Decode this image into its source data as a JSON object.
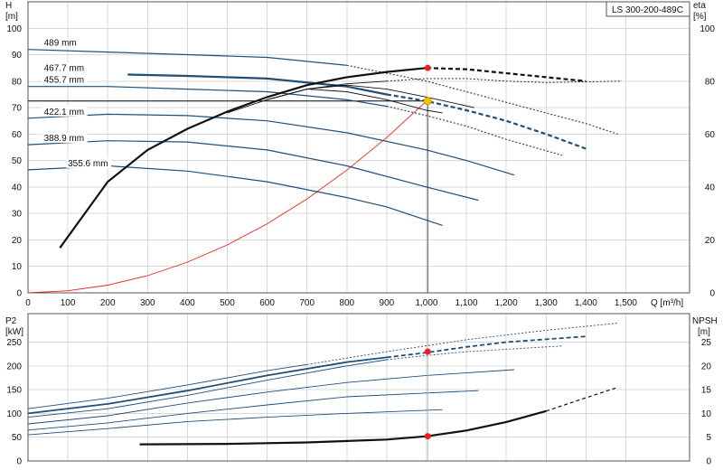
{
  "model_label": "LS 300-200-489C",
  "colors": {
    "impeller": "#1f4e79",
    "system": "#e8231b",
    "op_point_head": "#f2c500",
    "op_point": "#e8231b",
    "efficiency": "#111111",
    "npsh": "#111111",
    "grid": "#d9d9d9"
  },
  "chart_data": [
    {
      "type": "line",
      "panel": "head-efficiency",
      "title": "",
      "xlabel": "Q [m³/h]",
      "ylabel": "H\n[m]",
      "y2label": "eta\n[%]",
      "ylabel_parts": [
        "H",
        "[m]"
      ],
      "y2label_parts": [
        "eta",
        "[%]"
      ],
      "xlim": [
        0,
        1660
      ],
      "ylim": [
        0,
        110
      ],
      "y2lim": [
        0,
        110
      ],
      "xticks": [
        0,
        100,
        200,
        300,
        400,
        500,
        600,
        700,
        800,
        900,
        1000,
        1100,
        1200,
        1300,
        1400,
        1500
      ],
      "xtick_labels": [
        "0",
        "100",
        "200",
        "300",
        "400",
        "500",
        "600",
        "700",
        "800",
        "900",
        "1,000",
        "1,100",
        "1,200",
        "1,300",
        "1,400",
        "1,500"
      ],
      "yticks": [
        0,
        10,
        20,
        30,
        40,
        50,
        60,
        70,
        80,
        90,
        100
      ],
      "y2ticks": [
        0,
        20,
        40,
        60,
        80,
        100
      ],
      "grid": true,
      "series": [
        {
          "name": "489 mm",
          "label_x": 40,
          "solid": [
            [
              0,
              92
            ],
            [
              200,
              91
            ],
            [
              400,
              90
            ],
            [
              600,
              89
            ],
            [
              800,
              86
            ]
          ],
          "dashed": [
            [
              800,
              86
            ],
            [
              1000,
              80
            ],
            [
              1200,
              72
            ],
            [
              1400,
              64
            ],
            [
              1480,
              60
            ]
          ]
        },
        {
          "name": "467.7 mm",
          "label_x": 40,
          "solid": [
            [
              250,
              82.5
            ],
            [
              400,
              82
            ],
            [
              600,
              81
            ],
            [
              800,
              78
            ],
            [
              900,
              75
            ]
          ],
          "dashed": [
            [
              900,
              75
            ],
            [
              1000,
              72.5
            ],
            [
              1100,
              69
            ],
            [
              1200,
              65
            ],
            [
              1300,
              60
            ],
            [
              1400,
              54.5
            ]
          ]
        },
        {
          "name": "455.7 mm",
          "label_x": 40,
          "solid": [
            [
              0,
              78
            ],
            [
              200,
              78
            ],
            [
              400,
              77
            ],
            [
              600,
              76
            ],
            [
              800,
              73
            ],
            [
              900,
              70.5
            ]
          ],
          "dashed": [
            [
              900,
              70.5
            ],
            [
              1000,
              67
            ],
            [
              1100,
              63
            ],
            [
              1200,
              58
            ],
            [
              1340,
              52
            ]
          ]
        },
        {
          "name": "422.1 mm",
          "label_x": 40,
          "solid": [
            [
              0,
              66
            ],
            [
              200,
              67.5
            ],
            [
              400,
              67
            ],
            [
              600,
              65
            ],
            [
              800,
              60.5
            ],
            [
              1000,
              54
            ],
            [
              1100,
              50
            ],
            [
              1220,
              44.5
            ]
          ],
          "dashed": []
        },
        {
          "name": "388.9 mm",
          "label_x": 40,
          "solid": [
            [
              0,
              56
            ],
            [
              200,
              57.5
            ],
            [
              400,
              57
            ],
            [
              600,
              54
            ],
            [
              800,
              48
            ],
            [
              1000,
              40
            ],
            [
              1130,
              35
            ]
          ],
          "dashed": []
        },
        {
          "name": "355.6 mm",
          "label_x": 100,
          "solid": [
            [
              0,
              46.5
            ],
            [
              200,
              48
            ],
            [
              400,
              46
            ],
            [
              600,
              42
            ],
            [
              800,
              36
            ],
            [
              900,
              32.5
            ],
            [
              1040,
              25.5
            ]
          ],
          "dashed": []
        }
      ],
      "system_curve": [
        [
          0,
          0
        ],
        [
          100,
          0.8
        ],
        [
          200,
          2.9
        ],
        [
          300,
          6.5
        ],
        [
          400,
          11.6
        ],
        [
          500,
          18.1
        ],
        [
          600,
          26.1
        ],
        [
          700,
          35.5
        ],
        [
          800,
          46.4
        ],
        [
          900,
          58.7
        ],
        [
          1000,
          72.5
        ]
      ],
      "efficiency_curves": [
        {
          "solid": [
            [
              80,
              17
            ],
            [
              200,
              42
            ],
            [
              300,
              54
            ],
            [
              400,
              62
            ],
            [
              500,
              68.5
            ],
            [
              600,
              74
            ],
            [
              700,
              78.5
            ],
            [
              800,
              81.5
            ],
            [
              900,
              83.5
            ],
            [
              1000,
              85
            ]
          ],
          "dashed": [
            [
              1000,
              85
            ],
            [
              1100,
              84.5
            ],
            [
              1200,
              83
            ],
            [
              1300,
              81.5
            ],
            [
              1400,
              80
            ]
          ]
        },
        {
          "solid": [
            [
              500,
              68
            ],
            [
              600,
              73
            ],
            [
              700,
              77
            ],
            [
              800,
              79
            ],
            [
              900,
              80
            ]
          ],
          "dashed": [
            [
              900,
              80
            ],
            [
              1000,
              81
            ],
            [
              1100,
              81
            ],
            [
              1200,
              80
            ],
            [
              1300,
              79.5
            ],
            [
              1490,
              80
            ]
          ]
        },
        {
          "solid": [
            [
              600,
              73
            ],
            [
              700,
              77
            ],
            [
              800,
              78.5
            ],
            [
              900,
              77
            ],
            [
              1000,
              74
            ],
            [
              1120,
              70
            ]
          ],
          "dashed": []
        },
        {
          "solid": [
            [
              600,
              73
            ],
            [
              700,
              77
            ],
            [
              800,
              76
            ],
            [
              900,
              73
            ],
            [
              1000,
              69
            ],
            [
              1040,
              68
            ]
          ],
          "dashed": []
        }
      ],
      "operating_point": {
        "q": 1003,
        "h": 72.5,
        "eta": 85
      },
      "operating_line": {
        "h": 72.5,
        "q": 1003
      }
    },
    {
      "type": "line",
      "panel": "power-npsh",
      "title": "",
      "ylabel": "P2\n[kW]",
      "y2label": "NPSH\n[m]",
      "ylabel_parts": [
        "P2",
        "[kW]"
      ],
      "y2label_parts": [
        "NPSH",
        "[m]"
      ],
      "xlim": [
        0,
        1660
      ],
      "ylim": [
        0,
        310
      ],
      "y2lim": [
        0,
        31
      ],
      "yticks": [
        0,
        50,
        100,
        150,
        200,
        250
      ],
      "y2ticks": [
        0,
        5,
        10,
        15,
        20,
        25
      ],
      "grid": true,
      "power_curves": [
        {
          "name": "489 mm",
          "solid": [
            [
              0,
              110
            ],
            [
              200,
              132
            ],
            [
              400,
              160
            ],
            [
              600,
              190
            ],
            [
              700,
              203
            ]
          ],
          "dashed": [
            [
              700,
              203
            ],
            [
              900,
              230
            ],
            [
              1100,
              255
            ],
            [
              1300,
              275
            ],
            [
              1480,
              290
            ]
          ]
        },
        {
          "name": "467.7 mm",
          "solid": [
            [
              0,
              100
            ],
            [
              200,
              120
            ],
            [
              400,
              148
            ],
            [
              600,
              180
            ],
            [
              800,
              208
            ],
            [
              900,
              218
            ]
          ],
          "dashed": [
            [
              900,
              218
            ],
            [
              1000,
              228
            ],
            [
              1100,
              240
            ],
            [
              1200,
              250
            ],
            [
              1400,
              262
            ]
          ]
        },
        {
          "name": "455.7 mm",
          "solid": [
            [
              0,
              92
            ],
            [
              200,
              110
            ],
            [
              400,
              138
            ],
            [
              600,
              170
            ],
            [
              800,
              200
            ],
            [
              900,
              213
            ]
          ],
          "dashed": [
            [
              900,
              213
            ],
            [
              1000,
              222
            ],
            [
              1100,
              230
            ],
            [
              1200,
              235
            ],
            [
              1340,
              242
            ]
          ]
        },
        {
          "name": "422.1 mm",
          "solid": [
            [
              0,
              78
            ],
            [
              200,
              95
            ],
            [
              400,
              122
            ],
            [
              600,
              145
            ],
            [
              800,
              165
            ],
            [
              1000,
              180
            ],
            [
              1220,
              192
            ]
          ],
          "dashed": []
        },
        {
          "name": "388.9 mm",
          "solid": [
            [
              0,
              65
            ],
            [
              200,
              80
            ],
            [
              400,
              100
            ],
            [
              600,
              118
            ],
            [
              800,
              135
            ],
            [
              1000,
              143
            ],
            [
              1130,
              148
            ]
          ],
          "dashed": []
        },
        {
          "name": "355.6 mm",
          "solid": [
            [
              0,
              55
            ],
            [
              200,
              68
            ],
            [
              400,
              83
            ],
            [
              600,
              92
            ],
            [
              800,
              100
            ],
            [
              1040,
              108
            ]
          ],
          "dashed": []
        }
      ],
      "npsh_curve": {
        "solid": [
          [
            280,
            3.5
          ],
          [
            500,
            3.6
          ],
          [
            700,
            3.9
          ],
          [
            900,
            4.5
          ],
          [
            1000,
            5.2
          ],
          [
            1100,
            6.4
          ],
          [
            1200,
            8.2
          ],
          [
            1300,
            10.5
          ]
        ],
        "dashed": [
          [
            1300,
            10.5
          ],
          [
            1400,
            13.3
          ],
          [
            1480,
            15.5
          ]
        ]
      },
      "operating_point_power": {
        "q": 1003,
        "p": 230
      },
      "operating_point_npsh": {
        "q": 1003,
        "npsh": 5.2
      }
    }
  ]
}
